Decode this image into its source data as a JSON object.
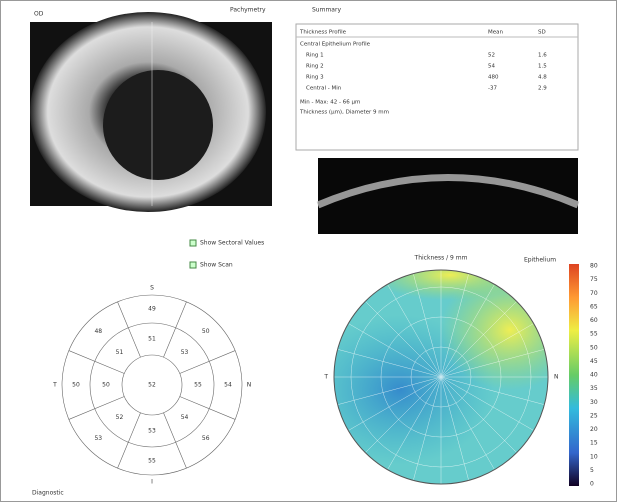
{
  "header": {
    "eye": "OD",
    "left_tab": "Pachymetry",
    "right_tab": "Summary"
  },
  "table": {
    "header": [
      "Thickness Profile",
      "Mean",
      "SD"
    ],
    "rows": [
      [
        "Central Epithelium Profile",
        "",
        ""
      ],
      [
        "Ring 1",
        "52",
        "1.6"
      ],
      [
        "Ring 2",
        "54",
        "1.5"
      ],
      [
        "Ring 3",
        "480",
        "4.8"
      ],
      [
        "Central - Min",
        "-37",
        "2.9"
      ]
    ],
    "footer": "Min - Max: 42 - 66 µm",
    "note": "Thickness (µm), Diameter 9 mm"
  },
  "checkboxes": [
    "Show Sectoral Values",
    "Show Scan"
  ],
  "sector_map": {
    "labels": [
      "S",
      "N",
      "I",
      "T"
    ],
    "center": "52",
    "values": [
      "51",
      "53",
      "55",
      "54",
      "53",
      "52",
      "50",
      "51"
    ],
    "outer": [
      "49",
      "50",
      "54",
      "56",
      "55",
      "53",
      "50",
      "48"
    ]
  },
  "color_map": {
    "title": "Thickness / 9 mm",
    "unit": "Epithelium",
    "labels": [
      "T",
      "N"
    ],
    "ticks": [
      80,
      75,
      70,
      65,
      60,
      55,
      50,
      45,
      40,
      35,
      30,
      25,
      20,
      15,
      10,
      5,
      0
    ]
  },
  "footer": "Diagnostic"
}
